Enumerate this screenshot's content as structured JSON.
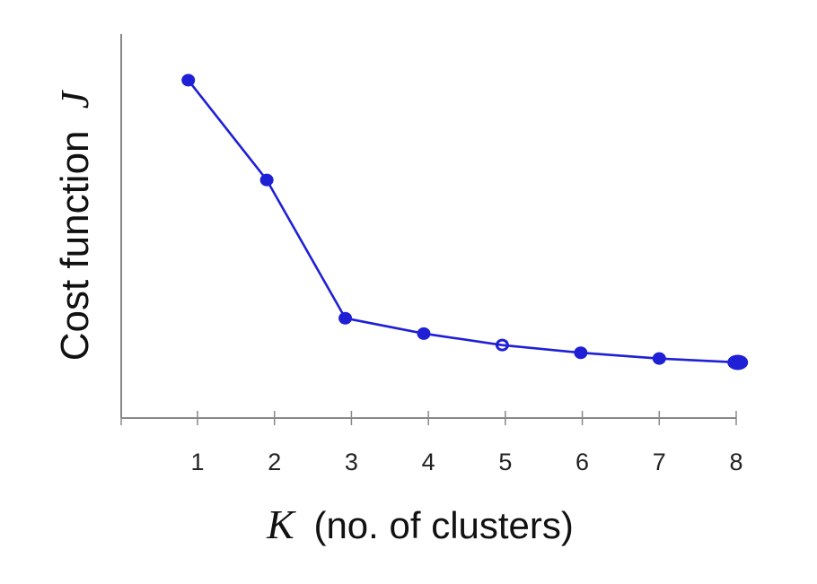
{
  "chart_data": {
    "type": "line",
    "title": "",
    "ylabel": "Cost function",
    "ylabel_symbol": "J",
    "xlabel": "(no. of clusters)",
    "xlabel_symbol": "K",
    "x": [
      1,
      2,
      3,
      4,
      5,
      6,
      7,
      8
    ],
    "tick_labels": [
      "1",
      "2",
      "3",
      "4",
      "5",
      "6",
      "7",
      "8"
    ],
    "series": [
      {
        "values": [
          0.88,
          0.62,
          0.26,
          0.22,
          0.19,
          0.17,
          0.155,
          0.145
        ]
      }
    ],
    "xlim": [
      0,
      8
    ],
    "ylim": [
      0,
      1
    ],
    "y_ticks_shown": false,
    "grid": false,
    "legend": "none",
    "style": "hand-drawn",
    "colors": {
      "line": "#1f1fd6",
      "axis": "#888888"
    }
  }
}
